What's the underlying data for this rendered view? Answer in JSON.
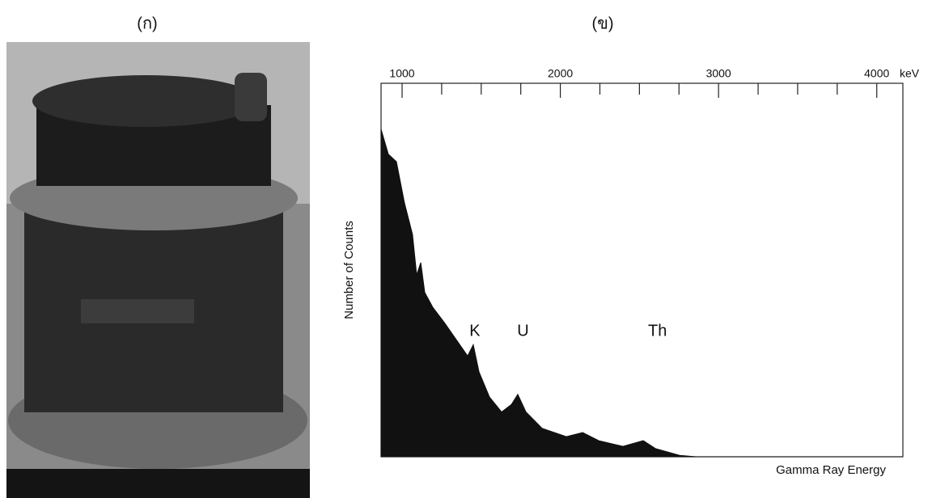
{
  "panel_a": {
    "label": "(ก)"
  },
  "chart_data": {
    "type": "area",
    "label": "(ข)",
    "x_label": "Gamma Ray Energy",
    "y_label": "Number of Counts",
    "x_unit": "keV",
    "x": [
      867,
      913,
      964,
      1015,
      1066,
      1092,
      1118,
      1143,
      1194,
      1271,
      1348,
      1414,
      1450,
      1486,
      1552,
      1629,
      1691,
      1731,
      1783,
      1885,
      2038,
      2141,
      2243,
      2396,
      2524,
      2601,
      2754,
      2857,
      4160
    ],
    "values": [
      87.7,
      81,
      79,
      68,
      59.5,
      48.7,
      52,
      44,
      40,
      35.7,
      31,
      27,
      30,
      22.7,
      16,
      12,
      14,
      16.7,
      12,
      7.6,
      5.4,
      6.5,
      4.3,
      2.8,
      4.3,
      2.2,
      0.4,
      0,
      0
    ],
    "color": "#111111",
    "xlim": [
      867,
      4165
    ],
    "ylim": [
      0,
      100
    ],
    "xticks": [
      1000,
      2000,
      3000,
      4000
    ],
    "xminor_ticks": [
      1250,
      1500,
      1750,
      2250,
      2500,
      2750,
      3250,
      3500,
      3750
    ],
    "annotations": [
      {
        "text": "K",
        "x": 1460
      },
      {
        "text": "U",
        "x": 1764
      },
      {
        "text": "Th",
        "x": 2614
      }
    ]
  }
}
